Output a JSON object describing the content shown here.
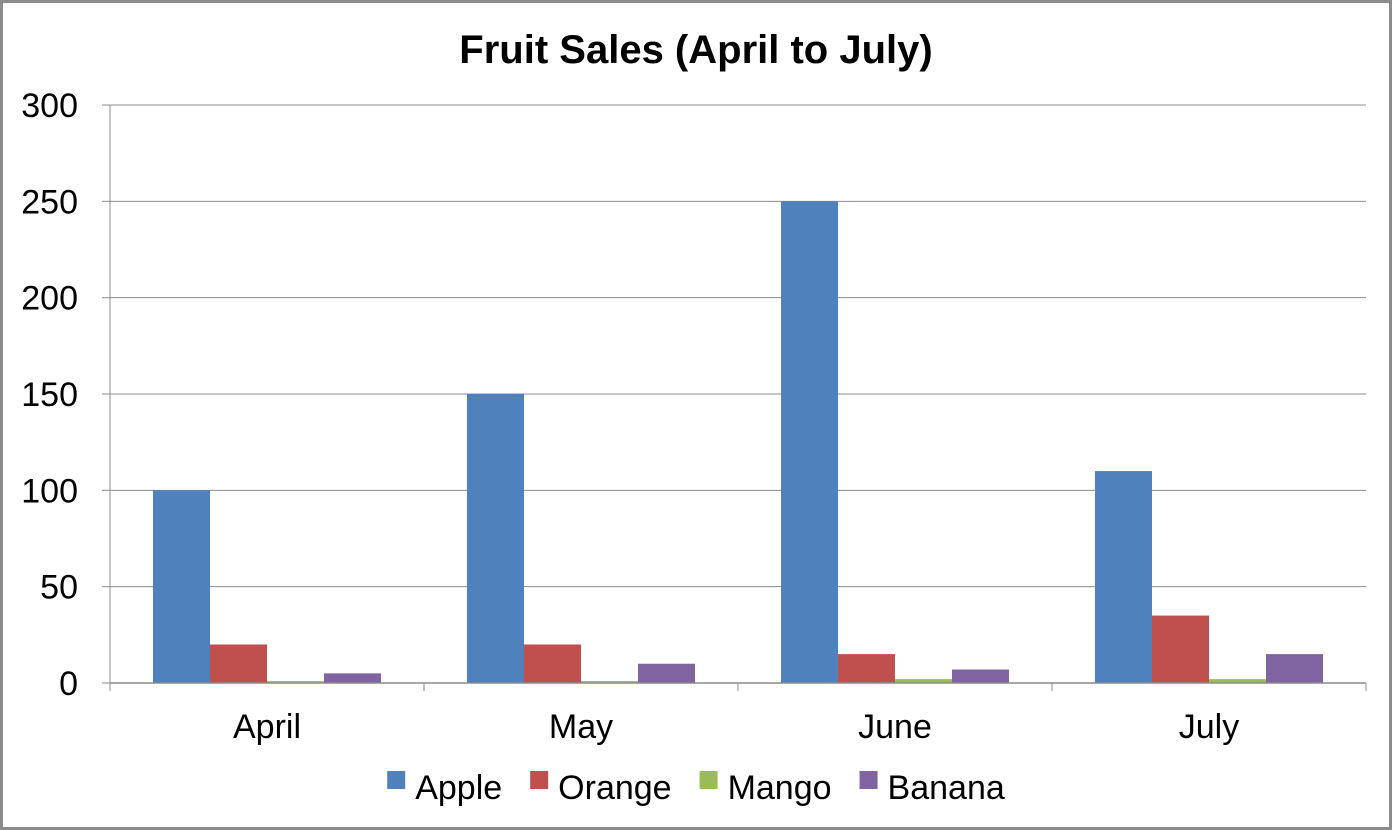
{
  "chart_data": {
    "type": "bar",
    "title": "Fruit Sales (April to July)",
    "xlabel": "",
    "ylabel": "",
    "categories": [
      "April",
      "May",
      "June",
      "July"
    ],
    "series": [
      {
        "name": "Apple",
        "color": "#4f81bd",
        "values": [
          100,
          150,
          250,
          110
        ]
      },
      {
        "name": "Orange",
        "color": "#c0504d",
        "values": [
          20,
          20,
          15,
          35
        ]
      },
      {
        "name": "Mango",
        "color": "#9bbb59",
        "values": [
          1,
          1,
          2,
          2
        ]
      },
      {
        "name": "Banana",
        "color": "#8064a2",
        "values": [
          5,
          10,
          7,
          15
        ]
      }
    ],
    "ylim": [
      0,
      300
    ],
    "yticks": [
      0,
      50,
      100,
      150,
      200,
      250,
      300
    ],
    "grid": true,
    "legend_position": "bottom"
  }
}
